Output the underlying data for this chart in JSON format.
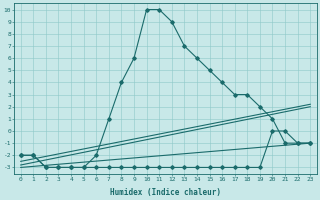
{
  "xlabel": "Humidex (Indice chaleur)",
  "background_color": "#c8e8e8",
  "grid_color": "#8ec8c8",
  "line_color": "#1a6b6b",
  "xlim": [
    -0.5,
    23.5
  ],
  "ylim": [
    -3.5,
    10.5
  ],
  "xticks": [
    0,
    1,
    2,
    3,
    4,
    5,
    6,
    7,
    8,
    9,
    10,
    11,
    12,
    13,
    14,
    15,
    16,
    17,
    18,
    19,
    20,
    21,
    22,
    23
  ],
  "yticks": [
    -3,
    -2,
    -1,
    0,
    1,
    2,
    3,
    4,
    5,
    6,
    7,
    8,
    9,
    10
  ],
  "main_x": [
    0,
    1,
    2,
    3,
    4,
    5,
    6,
    7,
    8,
    9,
    10,
    11,
    12,
    13,
    14,
    15,
    16,
    17,
    18,
    19,
    20,
    21,
    22,
    23
  ],
  "main_y": [
    -2,
    -2,
    -3,
    -3,
    -3,
    -3,
    -2,
    1,
    4,
    6,
    10,
    10,
    9,
    7,
    6,
    5,
    4,
    3,
    3,
    2,
    1,
    -1,
    -1,
    -1
  ],
  "sec_x": [
    0,
    1,
    2,
    3,
    4,
    5,
    6,
    7,
    8,
    9,
    10,
    11,
    12,
    13,
    14,
    15,
    16,
    17,
    18,
    19,
    20,
    21,
    22,
    23
  ],
  "sec_y": [
    -2,
    -2,
    -3,
    -3,
    -3,
    -3,
    -3,
    -3,
    -3,
    -3,
    -3,
    -3,
    -3,
    -3,
    -3,
    -3,
    -3,
    -3,
    -3,
    -3,
    0,
    0,
    -1,
    -1
  ],
  "trend1_x": [
    0,
    23
  ],
  "trend1_y": [
    -2.5,
    2.2
  ],
  "trend2_x": [
    0,
    23
  ],
  "trend2_y": [
    -2.8,
    2.0
  ],
  "trend3_x": [
    0,
    23
  ],
  "trend3_y": [
    -3.0,
    -1.0
  ],
  "xlabel_fontsize": 5.5,
  "tick_fontsize": 4.5,
  "linewidth": 0.8,
  "markersize": 1.8
}
